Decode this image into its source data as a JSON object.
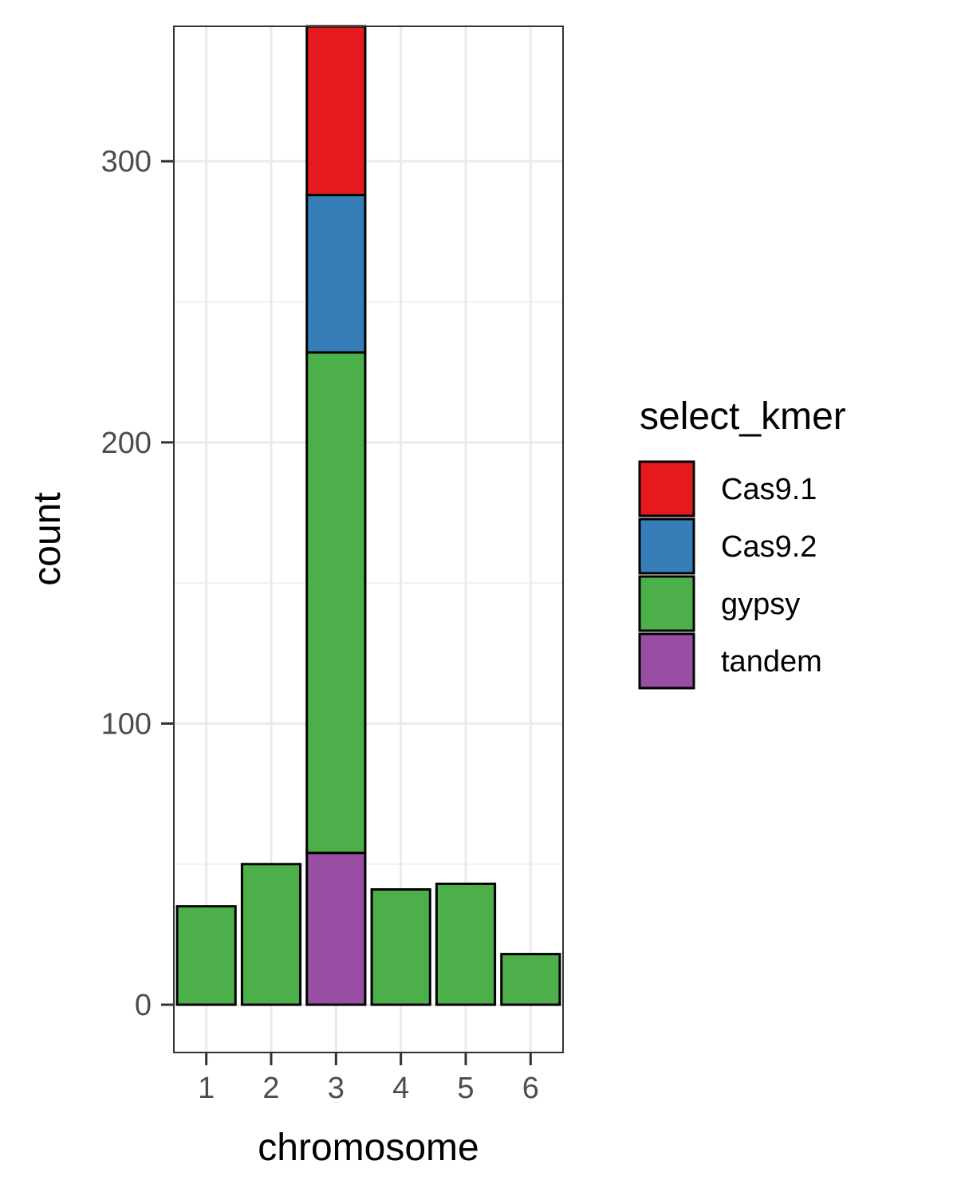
{
  "chart_data": {
    "type": "bar",
    "stacked": true,
    "xlabel": "chromosome",
    "ylabel": "count",
    "categories": [
      "1",
      "2",
      "3",
      "4",
      "5",
      "6"
    ],
    "series": [
      {
        "name": "Cas9.1",
        "color": "#e41a1c",
        "values": [
          0,
          0,
          60,
          0,
          0,
          0
        ]
      },
      {
        "name": "Cas9.2",
        "color": "#377eb8",
        "values": [
          0,
          0,
          56,
          0,
          0,
          0
        ]
      },
      {
        "name": "gypsy",
        "color": "#4daf4a",
        "values": [
          35,
          50,
          178,
          41,
          43,
          18
        ]
      },
      {
        "name": "tandem",
        "color": "#984ea3",
        "values": [
          0,
          0,
          54,
          0,
          0,
          0
        ]
      }
    ],
    "ylim": [
      -17,
      348
    ],
    "yticks": [
      0,
      100,
      200,
      300
    ],
    "grid": true,
    "legend": {
      "title": "select_kmer",
      "placement": "right"
    }
  }
}
